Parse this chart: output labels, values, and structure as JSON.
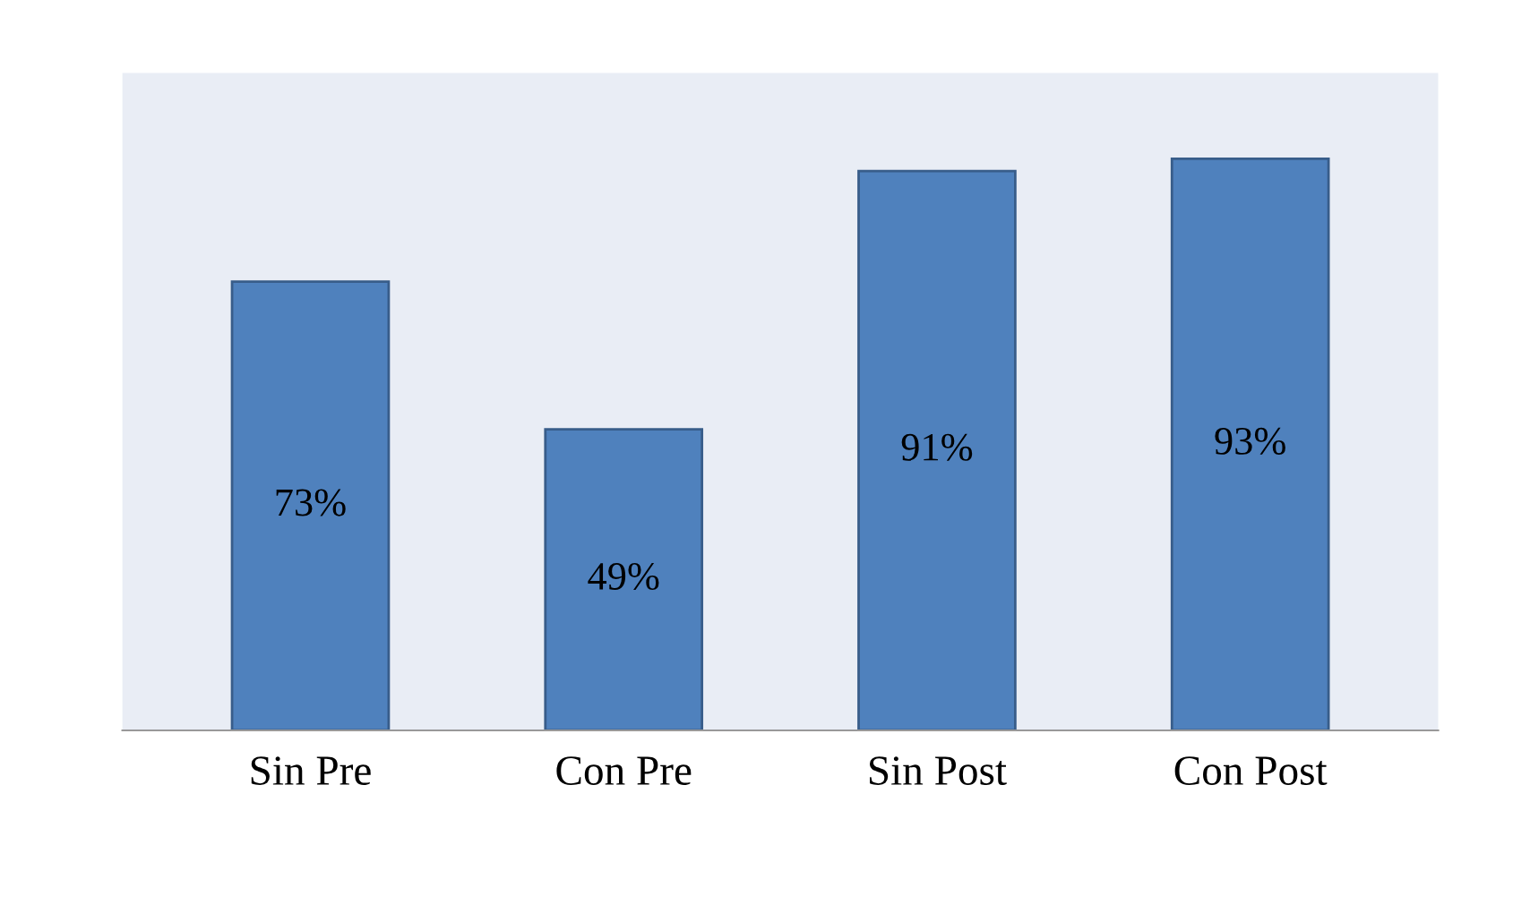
{
  "chart_data": {
    "type": "bar",
    "categories": [
      "Sin Pre",
      "Con Pre",
      "Sin Post",
      "Con Post"
    ],
    "values": [
      73,
      49,
      91,
      93
    ],
    "color": "#4f81bd",
    "value_labels": [
      "73%",
      "49%",
      "91%",
      "93%"
    ],
    "grid": false,
    "legend": false
  }
}
